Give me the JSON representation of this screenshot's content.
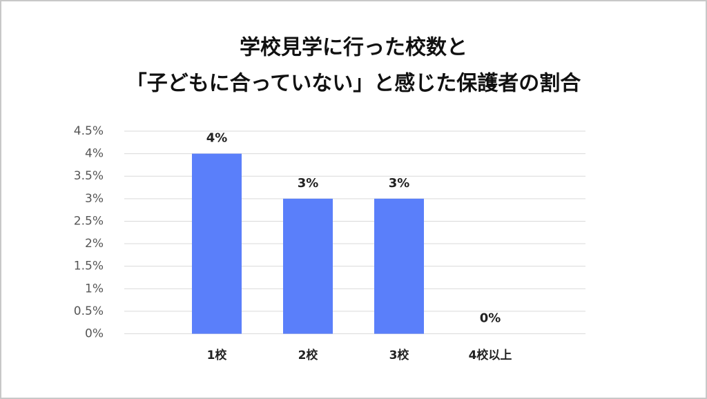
{
  "chart_data": {
    "type": "bar",
    "title": [
      "学校見学に行った校数と",
      "「子どもに合っていない」と感じた保護者の割合"
    ],
    "categories": [
      "1校",
      "2校",
      "3校",
      "4校以上"
    ],
    "values": [
      4,
      3,
      3,
      0
    ],
    "value_labels": [
      "4%",
      "3%",
      "3%",
      "0%"
    ],
    "color": "#5a7ffa",
    "ylim": [
      0,
      4.5
    ],
    "yticks": [
      {
        "value": 0,
        "label": "0%"
      },
      {
        "value": 0.5,
        "label": "0.5%"
      },
      {
        "value": 1,
        "label": "1%"
      },
      {
        "value": 1.5,
        "label": "1.5%"
      },
      {
        "value": 2,
        "label": "2%"
      },
      {
        "value": 2.5,
        "label": "2.5%"
      },
      {
        "value": 3,
        "label": "3%"
      },
      {
        "value": 3.5,
        "label": "3.5%"
      },
      {
        "value": 4,
        "label": "4%"
      },
      {
        "value": 4.5,
        "label": "4.5%"
      }
    ],
    "grid": true
  }
}
